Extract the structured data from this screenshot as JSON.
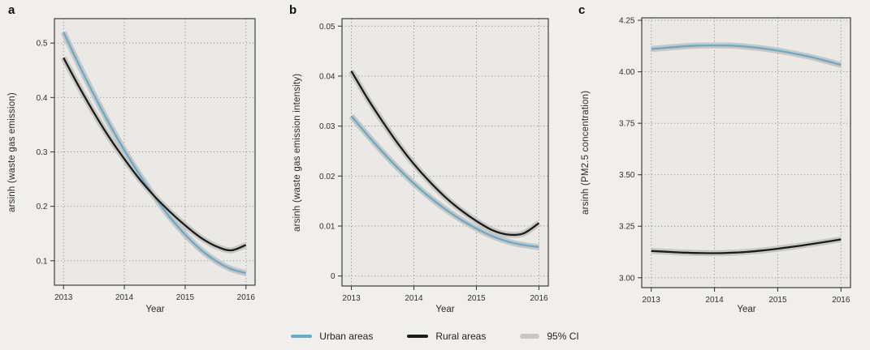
{
  "figure": {
    "colors": {
      "background": "#f1efec",
      "panel_background": "#eae9e6",
      "grid": "#8f8f8f",
      "border": "#3f3f3f",
      "tick_text": "#303030",
      "urban": "#66aacd",
      "rural": "#1b1b1b",
      "ci": "#c9c7c3"
    },
    "legend": {
      "items": [
        {
          "label": "Urban areas",
          "swatch": "urban-line-swatch",
          "type": "urban"
        },
        {
          "label": "Rural areas",
          "swatch": "rural-line-swatch",
          "type": "rural"
        },
        {
          "label": "95% CI",
          "swatch": "ci-band-swatch",
          "type": "ci"
        }
      ]
    }
  },
  "chart_data": [
    {
      "type": "line",
      "panel_label": "a",
      "xlabel": "Year",
      "ylabel": "arsinh (waste gas emission)",
      "grid": "dotted",
      "legend_position": "bottom-shared",
      "xlim": [
        2012.85,
        2016.15
      ],
      "ylim": [
        0.055,
        0.545
      ],
      "xticks": {
        "values": [
          2013,
          2014,
          2015,
          2016
        ],
        "labels": [
          "2013",
          "2014",
          "2015",
          "2016"
        ]
      },
      "yticks": {
        "values": [
          0.1,
          0.2,
          0.3,
          0.4,
          0.5
        ],
        "labels": [
          "0.1",
          "0.2",
          "0.3",
          "0.4",
          "0.5"
        ]
      },
      "x": [
        2013,
        2013.25,
        2013.5,
        2013.75,
        2014,
        2014.25,
        2014.5,
        2014.75,
        2015,
        2015.25,
        2015.5,
        2015.75,
        2016
      ],
      "series": [
        {
          "name": "Urban areas",
          "role": "urban",
          "ci": "95% CI",
          "values": [
            0.52,
            0.461,
            0.405,
            0.352,
            0.303,
            0.258,
            0.217,
            0.18,
            0.148,
            0.121,
            0.1,
            0.085,
            0.077
          ]
        },
        {
          "name": "Rural areas",
          "role": "rural",
          "ci": "95% CI",
          "values": [
            0.473,
            0.421,
            0.372,
            0.327,
            0.287,
            0.25,
            0.218,
            0.19,
            0.165,
            0.143,
            0.127,
            0.119,
            0.129
          ]
        }
      ]
    },
    {
      "type": "line",
      "panel_label": "b",
      "xlabel": "Year",
      "ylabel": "arsinh (waste gas emission intensity)",
      "grid": "dotted",
      "legend_position": "bottom-shared",
      "xlim": [
        2012.85,
        2016.15
      ],
      "ylim": [
        -0.002,
        0.0515
      ],
      "xticks": {
        "values": [
          2013,
          2014,
          2015,
          2016
        ],
        "labels": [
          "2013",
          "2014",
          "2015",
          "2016"
        ]
      },
      "yticks": {
        "values": [
          0,
          0.01,
          0.02,
          0.03,
          0.04,
          0.05
        ],
        "labels": [
          "0",
          "0.01",
          "0.02",
          "0.03",
          "0.04",
          "0.05"
        ]
      },
      "x": [
        2013,
        2013.25,
        2013.5,
        2013.75,
        2014,
        2014.25,
        2014.5,
        2014.75,
        2015,
        2015.25,
        2015.5,
        2015.75,
        2016
      ],
      "series": [
        {
          "name": "Urban areas",
          "role": "urban",
          "ci": "95% CI",
          "values": [
            0.032,
            0.0283,
            0.0248,
            0.0215,
            0.0185,
            0.0158,
            0.0134,
            0.0113,
            0.0095,
            0.008,
            0.0069,
            0.0062,
            0.0058
          ]
        },
        {
          "name": "Rural areas",
          "role": "rural",
          "ci": "95% CI",
          "values": [
            0.041,
            0.0357,
            0.0309,
            0.0264,
            0.0224,
            0.0189,
            0.0158,
            0.0132,
            0.011,
            0.0092,
            0.0083,
            0.0085,
            0.0106
          ]
        }
      ]
    },
    {
      "type": "line",
      "panel_label": "c",
      "xlabel": "Year",
      "ylabel": "arsinh (PM2.5 concentration)",
      "grid": "dotted",
      "legend_position": "bottom-shared",
      "xlim": [
        2012.85,
        2016.15
      ],
      "ylim": [
        2.952,
        4.262
      ],
      "xticks": {
        "values": [
          2013,
          2014,
          2015,
          2016
        ],
        "labels": [
          "2013",
          "2014",
          "2015",
          "2016"
        ]
      },
      "yticks": {
        "values": [
          3.0,
          3.25,
          3.5,
          3.75,
          4.0,
          4.25
        ],
        "labels": [
          "3.00",
          "3.25",
          "3.50",
          "3.75",
          "4.00",
          "4.25"
        ]
      },
      "x": [
        2013,
        2013.25,
        2013.5,
        2013.75,
        2014,
        2014.25,
        2014.5,
        2014.75,
        2015,
        2015.25,
        2015.5,
        2015.75,
        2016
      ],
      "series": [
        {
          "name": "Urban areas",
          "role": "urban",
          "ci": "95% CI",
          "values": [
            4.11,
            4.117,
            4.123,
            4.127,
            4.128,
            4.127,
            4.122,
            4.114,
            4.103,
            4.089,
            4.073,
            4.054,
            4.033
          ]
        },
        {
          "name": "Rural areas",
          "role": "rural",
          "ci": "95% CI",
          "values": [
            3.13,
            3.126,
            3.122,
            3.12,
            3.119,
            3.121,
            3.125,
            3.132,
            3.141,
            3.151,
            3.162,
            3.174,
            3.186
          ]
        }
      ]
    }
  ]
}
